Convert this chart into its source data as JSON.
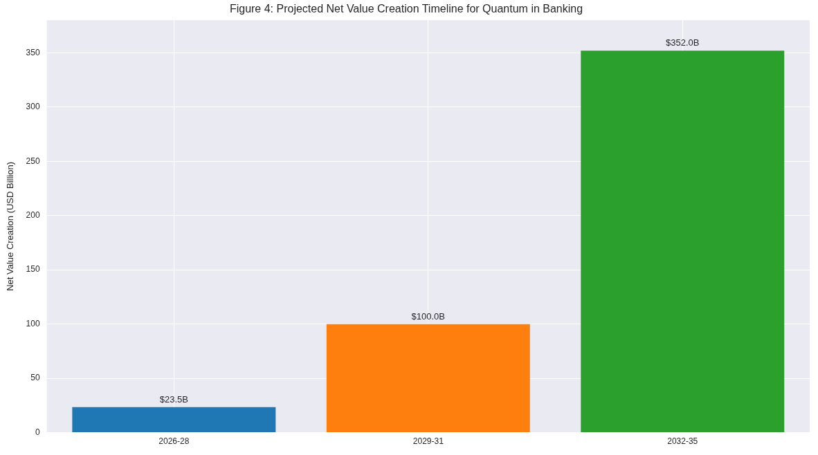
{
  "chart_data": {
    "type": "bar",
    "title": "Figure 4: Projected Net Value Creation Timeline for Quantum in Banking",
    "ylabel": "Net Value Creation (USD Billion)",
    "categories": [
      "2026-28",
      "2029-31",
      "2032-35"
    ],
    "values": [
      23.5,
      100,
      352
    ],
    "colors": [
      "#1f77b4",
      "#ff7f0e",
      "#2ca02c"
    ],
    "value_labels": [
      "$23.5B",
      "$100.0B",
      "$352.0B"
    ],
    "ylim": [
      0,
      380
    ],
    "yticks": [
      0,
      50,
      100,
      150,
      200,
      250,
      300,
      350
    ],
    "grid": true,
    "legend": false
  }
}
